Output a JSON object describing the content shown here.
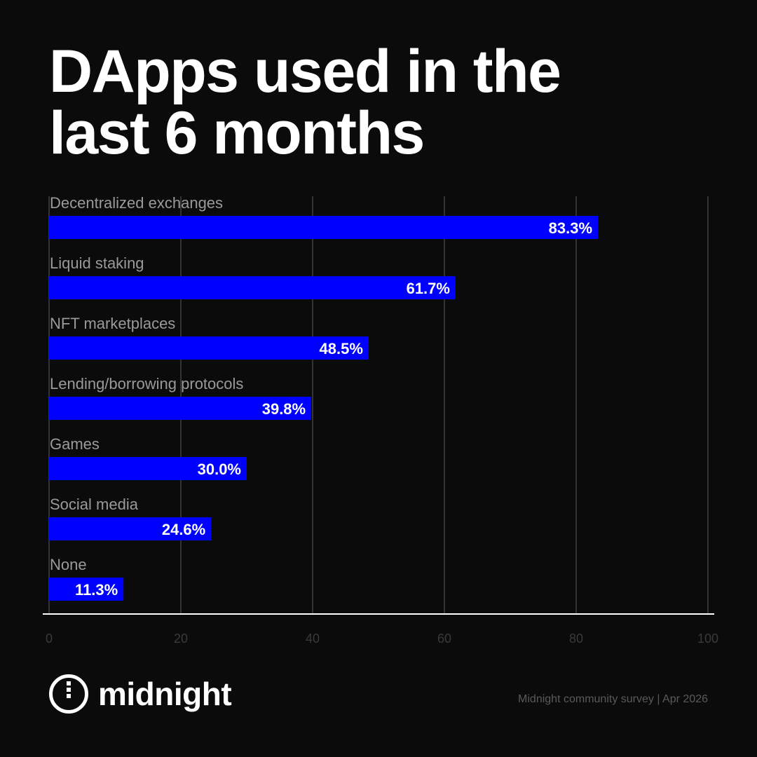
{
  "title": {
    "line1": "DApps used in the",
    "line2": "last 6 months"
  },
  "brand": {
    "name": "midnight",
    "logo_icon": "midnight-logo-icon"
  },
  "source": "Midnight community survey | Apr 2026",
  "colors": {
    "background": "#0b0b0b",
    "bar": "#0000ff",
    "gridline": "#333333",
    "axis": "#ffffff",
    "category_label": "#9a9a9a",
    "tick_label": "#3a3a3a"
  },
  "chart_data": {
    "type": "bar",
    "orientation": "horizontal",
    "title": "DApps used in the last 6 months",
    "xlabel": "",
    "ylabel": "",
    "xlim": [
      0,
      100
    ],
    "x_ticks": [
      0,
      20,
      40,
      60,
      80,
      100
    ],
    "grid": true,
    "legend": "none",
    "categories": [
      "Decentralized exchanges",
      "Liquid staking",
      "NFT marketplaces",
      "Lending/borrowing protocols",
      "Games",
      "Social media",
      "None"
    ],
    "values": [
      83.3,
      61.7,
      48.5,
      39.8,
      30.0,
      24.6,
      11.3
    ],
    "value_labels": [
      "83.3%",
      "61.7%",
      "48.5%",
      "39.8%",
      "30.0%",
      "24.6%",
      "11.3%"
    ],
    "unit": "%"
  }
}
